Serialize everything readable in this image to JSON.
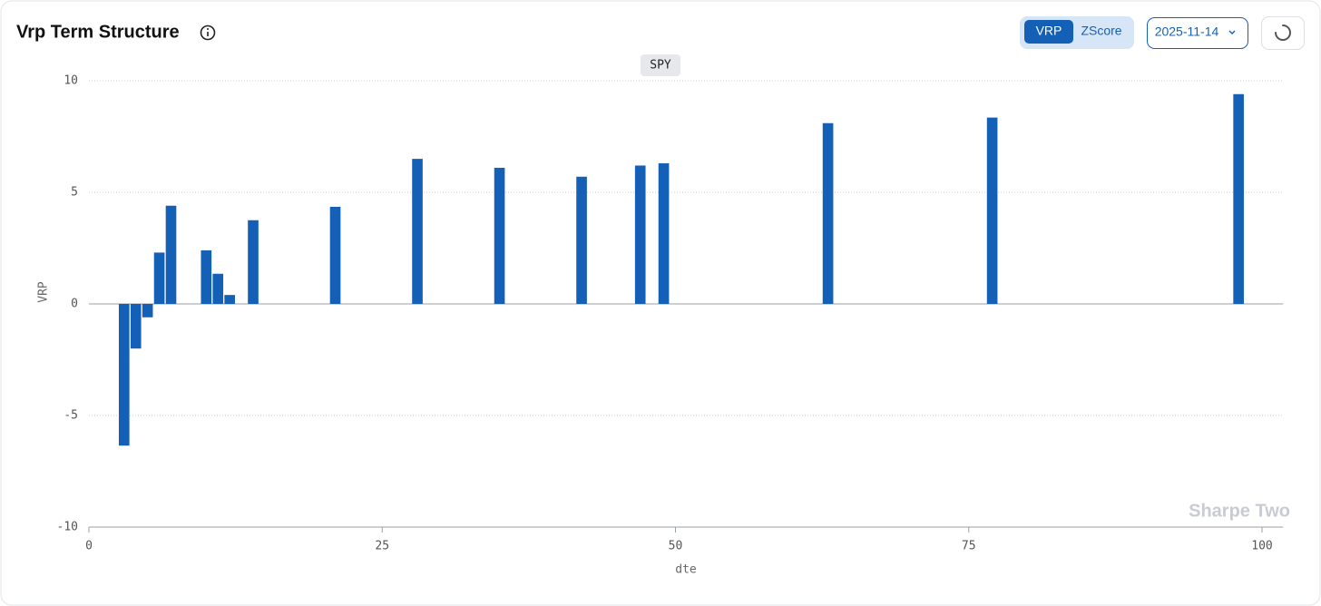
{
  "chart_data": {
    "type": "bar",
    "title": "Vrp Term Structure",
    "x": [
      3,
      4,
      5,
      6,
      7,
      10,
      11,
      12,
      14,
      21,
      28,
      35,
      42,
      47,
      49,
      63,
      77,
      98
    ],
    "series": [
      {
        "name": "SPY",
        "color": "#1560b7",
        "values": [
          -6.35,
          -2.0,
          -0.6,
          2.3,
          4.4,
          2.4,
          1.35,
          0.4,
          3.75,
          4.35,
          6.5,
          6.1,
          5.7,
          6.2,
          6.3,
          8.1,
          8.35,
          9.4
        ]
      }
    ],
    "xlabel": "dte",
    "ylabel": "VRP",
    "xlim": [
      0,
      101.8
    ],
    "xticks": [
      0,
      25,
      50,
      75,
      100
    ],
    "ylim": [
      -10,
      10
    ],
    "yticks": [
      -10,
      -5,
      0,
      5,
      10
    ],
    "grid": true,
    "bar_width": 0.9,
    "watermark": "Sharpe Two"
  },
  "controls": {
    "toggle": [
      "VRP",
      "ZScore"
    ],
    "active": 0,
    "date": "2025-11-14"
  }
}
